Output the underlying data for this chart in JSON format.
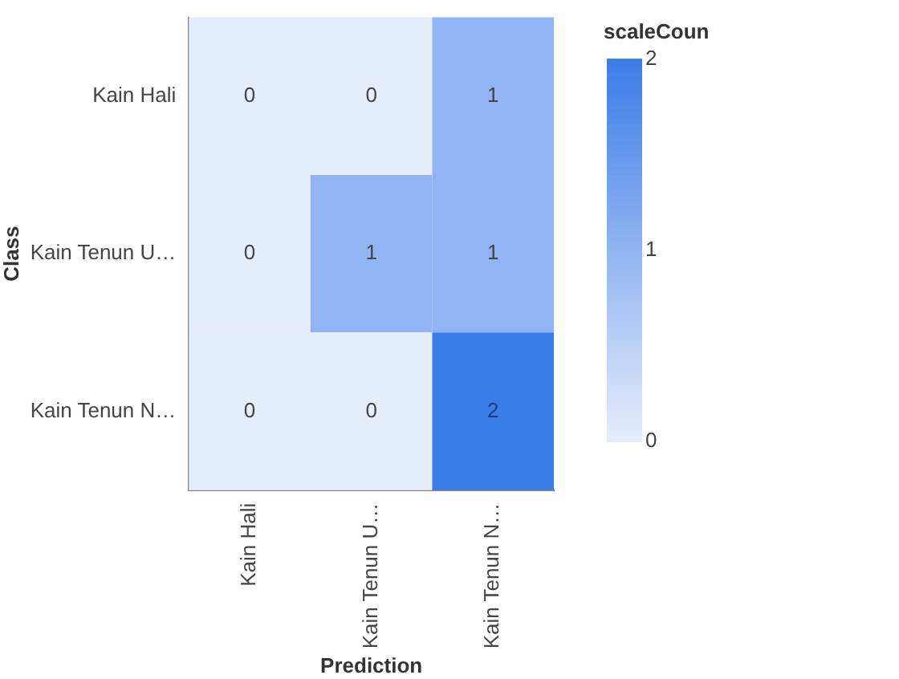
{
  "chart_data": {
    "type": "heatmap",
    "xlabel": "Prediction",
    "ylabel": "Class",
    "clabel": "scaleCoun",
    "categories": [
      "Kain Hali",
      "Kain Tenun U…",
      "Kain Tenun N…"
    ],
    "y_categories": [
      "Kain Hali",
      "Kain Tenun U…",
      "Kain Tenun N…"
    ],
    "cells": [
      [
        0,
        0,
        1
      ],
      [
        0,
        1,
        1
      ],
      [
        0,
        0,
        2
      ]
    ],
    "clim": [
      0,
      2
    ],
    "cticks": [
      0,
      1,
      2
    ],
    "colors": [
      "#e6edfb",
      "#3b7de8"
    ],
    "data_labels": true
  }
}
